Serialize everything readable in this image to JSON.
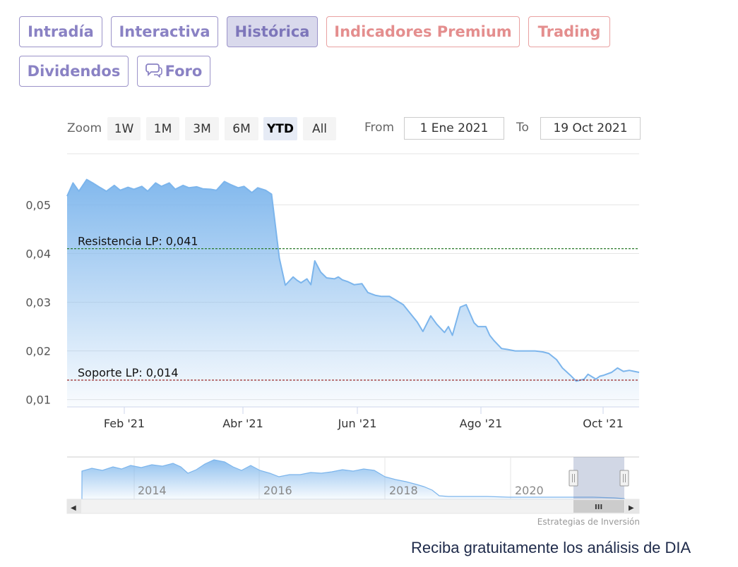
{
  "tabs": {
    "intradia": "Intradía",
    "interactiva": "Interactiva",
    "historica": "Histórica",
    "premium": "Indicadores Premium",
    "trading": "Trading",
    "dividendos": "Dividendos",
    "foro": "Foro"
  },
  "range_selector": {
    "zoom_label": "Zoom",
    "buttons": [
      "1W",
      "1M",
      "3M",
      "6M",
      "YTD",
      "All"
    ],
    "selected": "YTD",
    "from_label": "From",
    "from_value": "1 Ene 2021",
    "to_label": "To",
    "to_value": "19 Oct 2021"
  },
  "chart_data": {
    "type": "area",
    "y_ticks": [
      "0,01",
      "0,02",
      "0,03",
      "0,04",
      "0,05"
    ],
    "ylim": [
      0.0085,
      0.0605
    ],
    "x_ticks": [
      "Feb '21",
      "Abr '21",
      "Jun '21",
      "Ago '21",
      "Oct '21"
    ],
    "xlim": [
      "2021-01-01",
      "2021-10-19"
    ],
    "grid": true,
    "series": [
      {
        "color": "#7cb5ec",
        "x": [
          "2021-01-01",
          "2021-01-04",
          "2021-01-07",
          "2021-01-11",
          "2021-01-14",
          "2021-01-18",
          "2021-01-21",
          "2021-01-25",
          "2021-01-28",
          "2021-02-01",
          "2021-02-04",
          "2021-02-08",
          "2021-02-11",
          "2021-02-15",
          "2021-02-18",
          "2021-02-22",
          "2021-02-25",
          "2021-03-01",
          "2021-03-04",
          "2021-03-08",
          "2021-03-11",
          "2021-03-15",
          "2021-03-18",
          "2021-03-22",
          "2021-03-25",
          "2021-03-29",
          "2021-04-01",
          "2021-04-05",
          "2021-04-08",
          "2021-04-12",
          "2021-04-15",
          "2021-04-19",
          "2021-04-22",
          "2021-04-26",
          "2021-04-28",
          "2021-04-30",
          "2021-05-03",
          "2021-05-05",
          "2021-05-07",
          "2021-05-10",
          "2021-05-13",
          "2021-05-17",
          "2021-05-19",
          "2021-05-21",
          "2021-05-24",
          "2021-05-27",
          "2021-05-31",
          "2021-06-03",
          "2021-06-07",
          "2021-06-10",
          "2021-06-14",
          "2021-06-17",
          "2021-06-21",
          "2021-06-24",
          "2021-06-28",
          "2021-07-01",
          "2021-07-05",
          "2021-07-08",
          "2021-07-12",
          "2021-07-14",
          "2021-07-16",
          "2021-07-20",
          "2021-07-23",
          "2021-07-27",
          "2021-07-29",
          "2021-08-02",
          "2021-08-04",
          "2021-08-06",
          "2021-08-10",
          "2021-08-13",
          "2021-08-17",
          "2021-08-20",
          "2021-08-24",
          "2021-08-27",
          "2021-08-31",
          "2021-09-03",
          "2021-09-07",
          "2021-09-10",
          "2021-09-14",
          "2021-09-17",
          "2021-09-21",
          "2021-09-23",
          "2021-09-27",
          "2021-09-29",
          "2021-10-01",
          "2021-10-05",
          "2021-10-08",
          "2021-10-11",
          "2021-10-14",
          "2021-10-19"
        ],
        "y": [
          0.0518,
          0.0545,
          0.0528,
          0.0552,
          0.0545,
          0.0535,
          0.0528,
          0.054,
          0.053,
          0.0536,
          0.0532,
          0.0538,
          0.0528,
          0.0545,
          0.0538,
          0.0545,
          0.0532,
          0.054,
          0.0535,
          0.0537,
          0.0533,
          0.0532,
          0.053,
          0.0548,
          0.0542,
          0.0535,
          0.0538,
          0.0525,
          0.0535,
          0.053,
          0.0522,
          0.039,
          0.0335,
          0.0352,
          0.0345,
          0.034,
          0.0348,
          0.0336,
          0.0385,
          0.0362,
          0.035,
          0.0348,
          0.0352,
          0.0346,
          0.0342,
          0.0336,
          0.0338,
          0.032,
          0.0314,
          0.0312,
          0.0312,
          0.0305,
          0.0295,
          0.028,
          0.026,
          0.024,
          0.0272,
          0.0255,
          0.0238,
          0.025,
          0.0232,
          0.029,
          0.0295,
          0.0258,
          0.025,
          0.025,
          0.0232,
          0.0222,
          0.0205,
          0.0203,
          0.02,
          0.02,
          0.02,
          0.02,
          0.0198,
          0.0195,
          0.0182,
          0.0165,
          0.015,
          0.0138,
          0.0142,
          0.0152,
          0.0142,
          0.0148,
          0.015,
          0.0156,
          0.0165,
          0.0158,
          0.016,
          0.0156
        ]
      }
    ],
    "reference_lines": [
      {
        "label": "Resistencia LP: 0,041",
        "value": 0.041,
        "color": "#2a7a2a"
      },
      {
        "label": "Soporte LP: 0,014",
        "value": 0.014,
        "color": "#9a2a2a"
      }
    ]
  },
  "navigator": {
    "year_labels": [
      "2014",
      "2016",
      "2018",
      "2020"
    ],
    "handle_glyph": "III",
    "left_arrow": "◀",
    "right_arrow": "▶"
  },
  "credit": "Estrategias de Inversión",
  "footer": "Reciba gratuitamente los análisis de DIA"
}
